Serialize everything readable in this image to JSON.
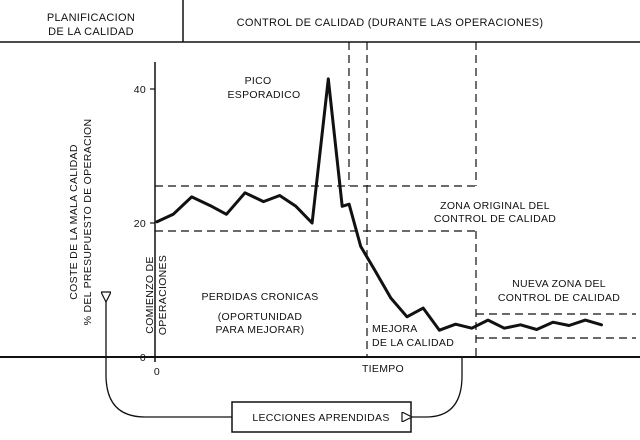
{
  "header": {
    "planning": [
      "PLANIFICACION",
      "DE LA CALIDAD"
    ],
    "control": "CONTROL DE CALIDAD (DURANTE LAS OPERACIONES)"
  },
  "chart_data": {
    "type": "line",
    "ylabel": [
      "COSTE DE LA MALA CALIDAD",
      "% DEL PRESUPUESTO DE OPERACION"
    ],
    "xlabel": "TIEMPO",
    "x_tick_labels": [
      "0"
    ],
    "y_tick_labels": [
      "0",
      "20",
      "40"
    ],
    "ylim": [
      0,
      46
    ],
    "xlim": [
      0,
      100
    ],
    "grid": false,
    "series": [
      {
        "x": [
          0,
          3.5,
          7.5,
          11.5,
          15,
          19,
          23,
          26.5,
          30,
          33.5,
          37,
          40,
          41.5,
          44,
          47,
          50.5,
          54,
          57.5,
          61,
          64.5,
          68,
          71.5,
          75,
          78.5,
          82,
          85.5,
          89,
          92.5,
          96
        ],
        "y": [
          20.2,
          21.3,
          23.9,
          22.6,
          21.3,
          24.5,
          23.2,
          24.1,
          22.5,
          20,
          41.5,
          22.5,
          22.8,
          16.5,
          13,
          8.8,
          6,
          7.3,
          4,
          4.9,
          4.3,
          5.5,
          4.3,
          4.8,
          4.1,
          5.2,
          4.7,
          5.5,
          4.8
        ]
      }
    ],
    "zones": [
      {
        "label": [
          "ZONA ORIGINAL DEL",
          "CONTROL DE CALIDAD"
        ],
        "y": [
          18.8,
          25.5
        ]
      },
      {
        "label": [
          "NUEVA ZONA DEL",
          "CONTROL DE CALIDAD"
        ],
        "y": [
          2.9,
          6.4
        ]
      }
    ],
    "annotations": {
      "spike": [
        "PICO",
        "ESPORADICO"
      ],
      "chronic": [
        "PERDIDAS CRONICAS",
        "(OPORTUNIDAD",
        "PARA MEJORAR)"
      ],
      "start": [
        "COMIENZO DE",
        "OPERACIONES"
      ],
      "improvement": [
        "MEJORA",
        "DE LA CALIDAD"
      ],
      "lessons": "LECCIONES APRENDIDAS"
    }
  }
}
